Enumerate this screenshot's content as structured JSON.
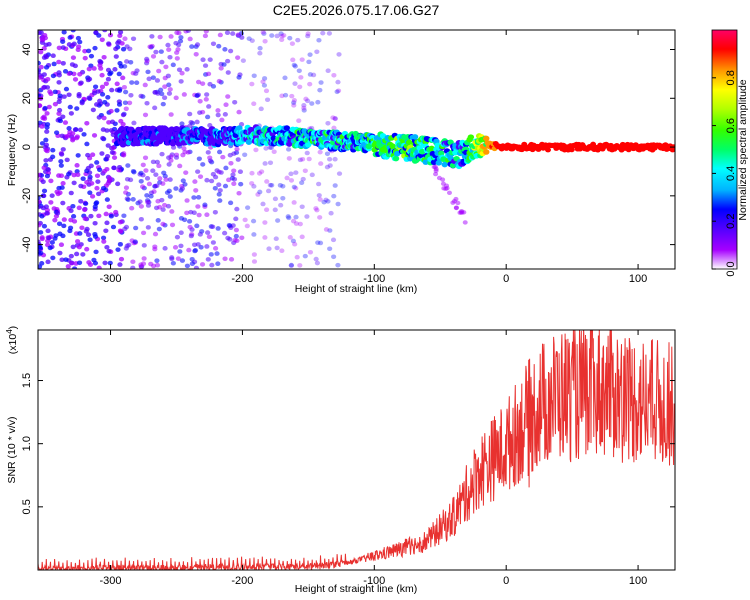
{
  "title": "C2E5.2026.075.17.06.G27",
  "colors": {
    "snr_line": "#e8312f",
    "colormap": [
      "#ffffff",
      "#a600ff",
      "#5000ff",
      "#0000ff",
      "#00b3ff",
      "#00ffff",
      "#00ff66",
      "#33ff00",
      "#b3ff00",
      "#ffff00",
      "#ff9900",
      "#ff0000",
      "#ff0066"
    ]
  },
  "chart_data": [
    {
      "name": "spectrogram",
      "type": "heatmap",
      "xlabel": "Height of straight line (km)",
      "ylabel": "Frequency (Hz)",
      "xlim": [
        -355,
        128
      ],
      "ylim": [
        -50,
        48
      ],
      "xticks": [
        -300,
        -200,
        -100,
        0,
        100
      ],
      "yticks": [
        -40,
        -20,
        0,
        20,
        40
      ],
      "colorbar": {
        "label": "Normalized spectral amplitude",
        "range": [
          0.0,
          1.0
        ],
        "ticks": [
          "0.0",
          "0.2",
          "0.4",
          "0.6",
          "0.8"
        ]
      },
      "ridge": [
        {
          "x": -295,
          "y": 4,
          "amp": 0.35
        },
        {
          "x": -260,
          "y": 5,
          "amp": 0.3
        },
        {
          "x": -220,
          "y": 4,
          "amp": 0.4
        },
        {
          "x": -180,
          "y": 5,
          "amp": 0.55
        },
        {
          "x": -140,
          "y": 3,
          "amp": 0.55
        },
        {
          "x": -110,
          "y": 2,
          "amp": 0.6
        },
        {
          "x": -80,
          "y": 0,
          "amp": 0.65
        },
        {
          "x": -50,
          "y": -2,
          "amp": 0.6
        },
        {
          "x": -35,
          "y": -3,
          "amp": 0.5
        },
        {
          "x": -20,
          "y": 1,
          "amp": 0.85
        },
        {
          "x": 0,
          "y": 0,
          "amp": 0.95
        },
        {
          "x": 50,
          "y": 0,
          "amp": 0.95
        },
        {
          "x": 100,
          "y": 0,
          "amp": 0.95
        },
        {
          "x": 128,
          "y": 0,
          "amp": 0.95
        }
      ]
    },
    {
      "name": "snr",
      "type": "line",
      "xlabel": "Height of straight line (km)",
      "ylabel": "SNR (10 * v/v)",
      "scale_label": "(x10",
      "scale_exponent": "4",
      "xlim": [
        -355,
        128
      ],
      "ylim": [
        0,
        1.9
      ],
      "xticks": [
        -300,
        -200,
        -100,
        0,
        100
      ],
      "yticks": [
        "0.5",
        "1.0",
        "1.5"
      ],
      "ytick_values": [
        0.5,
        1.0,
        1.5
      ],
      "series": [
        {
          "points": [
            {
              "x": -355,
              "y": 0.01
            },
            {
              "x": -300,
              "y": 0.02
            },
            {
              "x": -250,
              "y": 0.02
            },
            {
              "x": -200,
              "y": 0.03
            },
            {
              "x": -150,
              "y": 0.03
            },
            {
              "x": -120,
              "y": 0.06
            },
            {
              "x": -100,
              "y": 0.12
            },
            {
              "x": -80,
              "y": 0.18
            },
            {
              "x": -60,
              "y": 0.25
            },
            {
              "x": -40,
              "y": 0.45
            },
            {
              "x": -30,
              "y": 0.65
            },
            {
              "x": -20,
              "y": 0.85
            },
            {
              "x": -10,
              "y": 0.95
            },
            {
              "x": 0,
              "y": 1.05
            },
            {
              "x": 10,
              "y": 1.2
            },
            {
              "x": 25,
              "y": 1.4
            },
            {
              "x": 40,
              "y": 1.5
            },
            {
              "x": 55,
              "y": 1.5
            },
            {
              "x": 75,
              "y": 1.55
            },
            {
              "x": 100,
              "y": 1.45
            },
            {
              "x": 128,
              "y": 1.4
            }
          ]
        }
      ]
    }
  ]
}
